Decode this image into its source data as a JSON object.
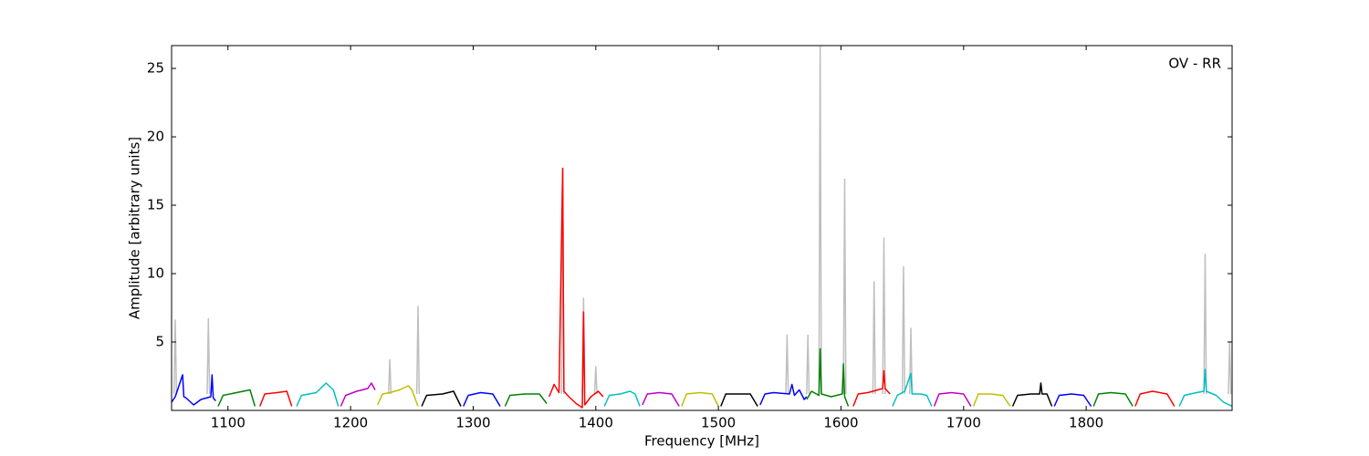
{
  "chart_data": {
    "type": "line",
    "annotation": "OV - RR",
    "x_label": "Frequency [MHz]",
    "y_label": "Amplitude [arbitrary units]",
    "xlim": [
      1054,
      1919
    ],
    "ylim": [
      0,
      26.67
    ],
    "xticks": [
      1100,
      1200,
      1300,
      1400,
      1500,
      1600,
      1700,
      1800
    ],
    "yticks": [
      5,
      10,
      15,
      20,
      25
    ],
    "series": [
      {
        "color": "#bfbfbf",
        "x": [
          1056,
          1057,
          1058,
          null,
          1083,
          1084,
          1085,
          null,
          1231,
          1232,
          1233,
          null,
          1254,
          1255,
          1256,
          null,
          1372,
          1373,
          1374,
          null,
          1389,
          1390,
          1391,
          null,
          1399,
          1400,
          1401,
          null,
          1555,
          1556,
          1557,
          null,
          1572,
          1573,
          1574,
          null,
          1582,
          1583,
          1584,
          null,
          1602,
          1603,
          1604,
          null,
          1626,
          1627,
          1628,
          null,
          1634,
          1635,
          1636,
          null,
          1650,
          1651,
          1652,
          null,
          1656,
          1657,
          1658,
          null,
          1896,
          1897,
          1898,
          null,
          1916,
          1917,
          1918
        ],
        "values": [
          1.2,
          6.6,
          1.2,
          null,
          1.2,
          6.7,
          1.2,
          null,
          1.2,
          3.7,
          1.2,
          null,
          1.2,
          7.6,
          1.2,
          null,
          1.2,
          17.7,
          1.2,
          null,
          1.2,
          8.2,
          1.2,
          null,
          1.2,
          3.2,
          1.2,
          null,
          1.2,
          5.5,
          1.2,
          null,
          1.2,
          5.5,
          1.2,
          null,
          1.2,
          27,
          1.2,
          null,
          1.2,
          16.9,
          1.2,
          null,
          1.2,
          9.4,
          1.2,
          null,
          1.2,
          12.6,
          1.2,
          null,
          1.2,
          10.5,
          1.2,
          null,
          1.2,
          6.0,
          1.2,
          null,
          1.2,
          11.4,
          1.2,
          null,
          1.2,
          5.0,
          1.2
        ]
      },
      {
        "color": "#0000ff",
        "x": [
          1054,
          1057,
          1063,
          1064,
          1066,
          1072,
          1078,
          1086,
          1087,
          1088,
          1090
        ],
        "values": [
          0.6,
          1.0,
          2.6,
          1.0,
          0.9,
          0.4,
          0.8,
          1.0,
          2.6,
          0.9,
          0.7
        ]
      },
      {
        "color": "#008000",
        "x": [
          1092,
          1096,
          1107,
          1118,
          1122
        ],
        "values": [
          0.3,
          1.1,
          1.3,
          1.5,
          0.3
        ]
      },
      {
        "color": "#ff0000",
        "x": [
          1126,
          1130,
          1140,
          1148,
          1152
        ],
        "values": [
          0.3,
          1.2,
          1.3,
          1.4,
          0.3
        ]
      },
      {
        "color": "#00bfbf",
        "x": [
          1156,
          1160,
          1172,
          1180,
          1186,
          1190
        ],
        "values": [
          0.3,
          1.1,
          1.3,
          2.0,
          1.5,
          0.3
        ]
      },
      {
        "color": "#bf00bf",
        "x": [
          1192,
          1196,
          1205,
          1214,
          1217,
          1220
        ],
        "values": [
          0.3,
          1.1,
          1.4,
          1.6,
          2.0,
          1.5
        ]
      },
      {
        "color": "#bfbf00",
        "x": [
          1222,
          1226,
          1232,
          1240,
          1247,
          1250,
          1255
        ],
        "values": [
          0.4,
          1.2,
          1.3,
          1.5,
          1.8,
          1.5,
          0.3
        ]
      },
      {
        "color": "#000000",
        "x": [
          1258,
          1262,
          1275,
          1284,
          1290
        ],
        "values": [
          0.3,
          1.1,
          1.2,
          1.4,
          0.3
        ]
      },
      {
        "color": "#0000ff",
        "x": [
          1292,
          1296,
          1306,
          1316,
          1322
        ],
        "values": [
          0.3,
          1.1,
          1.3,
          1.2,
          0.3
        ]
      },
      {
        "color": "#008000",
        "x": [
          1326,
          1330,
          1342,
          1354,
          1360
        ],
        "values": [
          0.3,
          1.1,
          1.2,
          1.2,
          0.5
        ]
      },
      {
        "color": "#ff0000",
        "x": [
          1362,
          1366,
          1370,
          1373,
          1374,
          1378,
          1384,
          1389,
          1390,
          1391,
          1396,
          1402,
          1406
        ],
        "values": [
          1.0,
          1.9,
          1.3,
          17.7,
          1.4,
          1.0,
          0.5,
          0.2,
          7.2,
          0.4,
          1.0,
          1.4,
          1.0
        ]
      },
      {
        "color": "#00bfbf",
        "x": [
          1407,
          1411,
          1420,
          1428,
          1432,
          1436
        ],
        "values": [
          0.3,
          1.1,
          1.2,
          1.4,
          1.2,
          0.3
        ]
      },
      {
        "color": "#bf00bf",
        "x": [
          1438,
          1442,
          1452,
          1462,
          1468
        ],
        "values": [
          0.4,
          1.2,
          1.3,
          1.2,
          0.3
        ]
      },
      {
        "color": "#bfbf00",
        "x": [
          1470,
          1474,
          1485,
          1495,
          1500
        ],
        "values": [
          0.3,
          1.2,
          1.3,
          1.2,
          0.3
        ]
      },
      {
        "color": "#000000",
        "x": [
          1502,
          1506,
          1516,
          1526,
          1532
        ],
        "values": [
          0.3,
          1.2,
          1.2,
          1.2,
          0.3
        ]
      },
      {
        "color": "#0000ff",
        "x": [
          1534,
          1538,
          1545,
          1558,
          1560,
          1562,
          1566,
          1570,
          1572
        ],
        "values": [
          0.4,
          1.2,
          1.3,
          1.2,
          1.9,
          1.1,
          1.5,
          0.8,
          1.0
        ]
      },
      {
        "color": "#008000",
        "x": [
          1572,
          1576,
          1582,
          1583,
          1584,
          1592,
          1601,
          1602,
          1603,
          1606
        ],
        "values": [
          0.8,
          1.4,
          1.1,
          4.5,
          1.2,
          1.0,
          1.2,
          3.4,
          1.0,
          0.3
        ]
      },
      {
        "color": "#ff0000",
        "x": [
          1610,
          1614,
          1622,
          1630,
          1634,
          1635,
          1636,
          1640
        ],
        "values": [
          0.3,
          1.2,
          1.3,
          1.5,
          1.6,
          2.9,
          1.6,
          1.2
        ]
      },
      {
        "color": "#00bfbf",
        "x": [
          1642,
          1646,
          1652,
          1657,
          1658,
          1665,
          1670,
          1674
        ],
        "values": [
          0.3,
          1.1,
          1.4,
          2.7,
          1.2,
          1.2,
          1.1,
          0.3
        ]
      },
      {
        "color": "#bf00bf",
        "x": [
          1676,
          1680,
          1690,
          1700,
          1706
        ],
        "values": [
          0.3,
          1.2,
          1.3,
          1.2,
          0.3
        ]
      },
      {
        "color": "#bfbf00",
        "x": [
          1708,
          1712,
          1722,
          1732,
          1738
        ],
        "values": [
          0.3,
          1.2,
          1.2,
          1.1,
          0.3
        ]
      },
      {
        "color": "#000000",
        "x": [
          1740,
          1744,
          1755,
          1762,
          1763,
          1764,
          1768,
          1772
        ],
        "values": [
          0.3,
          1.1,
          1.2,
          1.2,
          2.0,
          1.2,
          1.2,
          0.3
        ]
      },
      {
        "color": "#0000ff",
        "x": [
          1774,
          1778,
          1788,
          1798,
          1804
        ],
        "values": [
          0.3,
          1.1,
          1.2,
          1.1,
          0.3
        ]
      },
      {
        "color": "#008000",
        "x": [
          1806,
          1810,
          1820,
          1832,
          1838
        ],
        "values": [
          0.3,
          1.2,
          1.3,
          1.2,
          0.3
        ]
      },
      {
        "color": "#ff0000",
        "x": [
          1840,
          1844,
          1854,
          1866,
          1872
        ],
        "values": [
          0.3,
          1.2,
          1.4,
          1.2,
          0.3
        ]
      },
      {
        "color": "#00bfbf",
        "x": [
          1876,
          1880,
          1890,
          1896,
          1897,
          1898,
          1906,
          1912,
          1919
        ],
        "values": [
          0.3,
          1.1,
          1.3,
          1.4,
          3.0,
          1.4,
          1.1,
          0.6,
          0.3
        ]
      }
    ]
  }
}
